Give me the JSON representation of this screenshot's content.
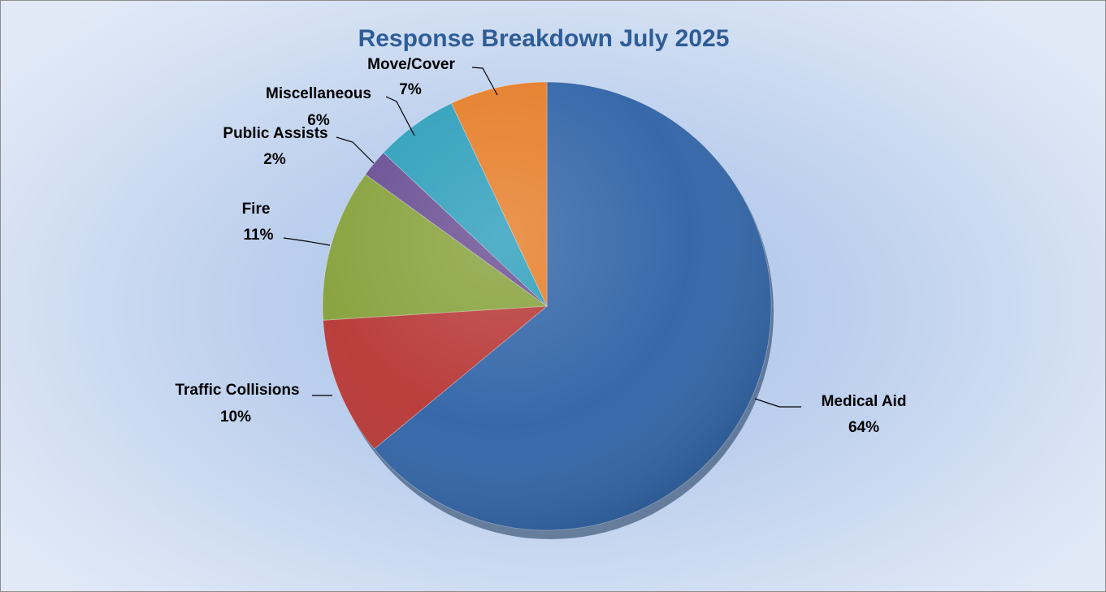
{
  "chart_data": {
    "type": "pie",
    "title": "Response Breakdown July 2025",
    "slices": [
      {
        "label": "Medical Aid",
        "value": 64,
        "value_label": "64%",
        "color": "#3366a8"
      },
      {
        "label": "Traffic Collisions",
        "value": 10,
        "value_label": "10%",
        "color": "#b83a38"
      },
      {
        "label": "Fire",
        "value": 11,
        "value_label": "11%",
        "color": "#87a23d"
      },
      {
        "label": "Public Assists",
        "value": 2,
        "value_label": "2%",
        "color": "#6a4f93"
      },
      {
        "label": "Miscellaneous",
        "value": 6,
        "value_label": "6%",
        "color": "#2f9fbc"
      },
      {
        "label": "Move/Cover",
        "value": 7,
        "value_label": "7%",
        "color": "#e67e2a"
      }
    ],
    "start_angle": "12 o'clock",
    "direction": "clockwise",
    "legend": "none",
    "data_labels": "outside with leader lines"
  }
}
